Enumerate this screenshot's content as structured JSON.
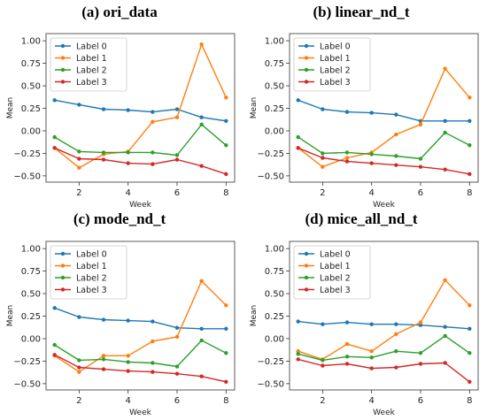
{
  "panels": [
    {
      "title": "(a) ori_data"
    },
    {
      "title": "(b) linear_nd_t"
    },
    {
      "title": "(c) mode_nd_t"
    },
    {
      "title": "(d) mice_all_nd_t"
    }
  ],
  "colors": {
    "label0": "#1f77b4",
    "label1": "#ff7f0e",
    "label2": "#2ca02c",
    "label3": "#d62728"
  },
  "chart_data": [
    {
      "type": "line",
      "title": "(a) ori_data",
      "xlabel": "Week",
      "ylabel": "Mean",
      "x": [
        1,
        2,
        3,
        4,
        5,
        6,
        7,
        8
      ],
      "xticks": [
        "2",
        "4",
        "6",
        "8"
      ],
      "yticks": [
        "1.00",
        "0.75",
        "0.50",
        "0.25",
        "0.00",
        "−0.25",
        "−0.50"
      ],
      "xlim": [
        0.65,
        8.35
      ],
      "ylim": [
        -0.57,
        1.08
      ],
      "legend": "top-left",
      "series": [
        {
          "name": "Label 0",
          "values": [
            0.34,
            0.29,
            0.24,
            0.23,
            0.21,
            0.24,
            0.15,
            0.11
          ]
        },
        {
          "name": "Label 1",
          "values": [
            -0.19,
            -0.41,
            -0.26,
            -0.23,
            0.1,
            0.15,
            0.96,
            0.37
          ]
        },
        {
          "name": "Label 2",
          "values": [
            -0.07,
            -0.23,
            -0.24,
            -0.24,
            -0.24,
            -0.27,
            0.07,
            -0.16
          ]
        },
        {
          "name": "Label 3",
          "values": [
            -0.19,
            -0.31,
            -0.32,
            -0.36,
            -0.37,
            -0.32,
            -0.39,
            -0.48
          ]
        }
      ]
    },
    {
      "type": "line",
      "title": "(b) linear_nd_t",
      "xlabel": "Week",
      "ylabel": "Mean",
      "x": [
        1,
        2,
        3,
        4,
        5,
        6,
        7,
        8
      ],
      "xticks": [
        "2",
        "4",
        "6",
        "8"
      ],
      "yticks": [
        "1.00",
        "0.75",
        "0.50",
        "0.25",
        "0.00",
        "−0.25",
        "−0.50"
      ],
      "xlim": [
        0.65,
        8.35
      ],
      "ylim": [
        -0.57,
        1.08
      ],
      "legend": "top-left",
      "series": [
        {
          "name": "Label 0",
          "values": [
            0.34,
            0.24,
            0.21,
            0.2,
            0.18,
            0.11,
            0.11,
            0.11
          ]
        },
        {
          "name": "Label 1",
          "values": [
            -0.19,
            -0.4,
            -0.3,
            -0.24,
            -0.04,
            0.07,
            0.69,
            0.37
          ]
        },
        {
          "name": "Label 2",
          "values": [
            -0.07,
            -0.25,
            -0.24,
            -0.26,
            -0.28,
            -0.31,
            -0.02,
            -0.16
          ]
        },
        {
          "name": "Label 3",
          "values": [
            -0.19,
            -0.3,
            -0.34,
            -0.36,
            -0.38,
            -0.4,
            -0.43,
            -0.48
          ]
        }
      ]
    },
    {
      "type": "line",
      "title": "(c) mode_nd_t",
      "xlabel": "Week",
      "ylabel": "Mean",
      "x": [
        1,
        2,
        3,
        4,
        5,
        6,
        7,
        8
      ],
      "xticks": [
        "2",
        "4",
        "6",
        "8"
      ],
      "yticks": [
        "1.00",
        "0.75",
        "0.50",
        "0.25",
        "0.00",
        "−0.25",
        "−0.50"
      ],
      "xlim": [
        0.65,
        8.35
      ],
      "ylim": [
        -0.57,
        1.08
      ],
      "legend": "top-left",
      "series": [
        {
          "name": "Label 0",
          "values": [
            0.34,
            0.24,
            0.21,
            0.2,
            0.19,
            0.12,
            0.11,
            0.11
          ]
        },
        {
          "name": "Label 1",
          "values": [
            -0.19,
            -0.37,
            -0.19,
            -0.19,
            -0.03,
            0.02,
            0.64,
            0.37
          ]
        },
        {
          "name": "Label 2",
          "values": [
            -0.07,
            -0.24,
            -0.23,
            -0.26,
            -0.27,
            -0.31,
            -0.02,
            -0.16
          ]
        },
        {
          "name": "Label 3",
          "values": [
            -0.18,
            -0.32,
            -0.34,
            -0.36,
            -0.37,
            -0.39,
            -0.42,
            -0.48
          ]
        }
      ]
    },
    {
      "type": "line",
      "title": "(d) mice_all_nd_t",
      "xlabel": "Week",
      "ylabel": "Mean",
      "x": [
        1,
        2,
        3,
        4,
        5,
        6,
        7,
        8
      ],
      "xticks": [
        "2",
        "4",
        "6",
        "8"
      ],
      "yticks": [
        "1.00",
        "0.75",
        "0.50",
        "0.25",
        "0.00",
        "−0.25",
        "−0.50"
      ],
      "xlim": [
        0.65,
        8.35
      ],
      "ylim": [
        -0.57,
        1.08
      ],
      "legend": "top-left",
      "series": [
        {
          "name": "Label 0",
          "values": [
            0.19,
            0.16,
            0.18,
            0.16,
            0.16,
            0.15,
            0.13,
            0.11
          ]
        },
        {
          "name": "Label 1",
          "values": [
            -0.14,
            -0.23,
            -0.06,
            -0.14,
            0.05,
            0.18,
            0.65,
            0.37
          ]
        },
        {
          "name": "Label 2",
          "values": [
            -0.17,
            -0.24,
            -0.2,
            -0.21,
            -0.14,
            -0.16,
            0.03,
            -0.16
          ]
        },
        {
          "name": "Label 3",
          "values": [
            -0.23,
            -0.3,
            -0.28,
            -0.33,
            -0.32,
            -0.28,
            -0.27,
            -0.48
          ]
        }
      ]
    }
  ]
}
